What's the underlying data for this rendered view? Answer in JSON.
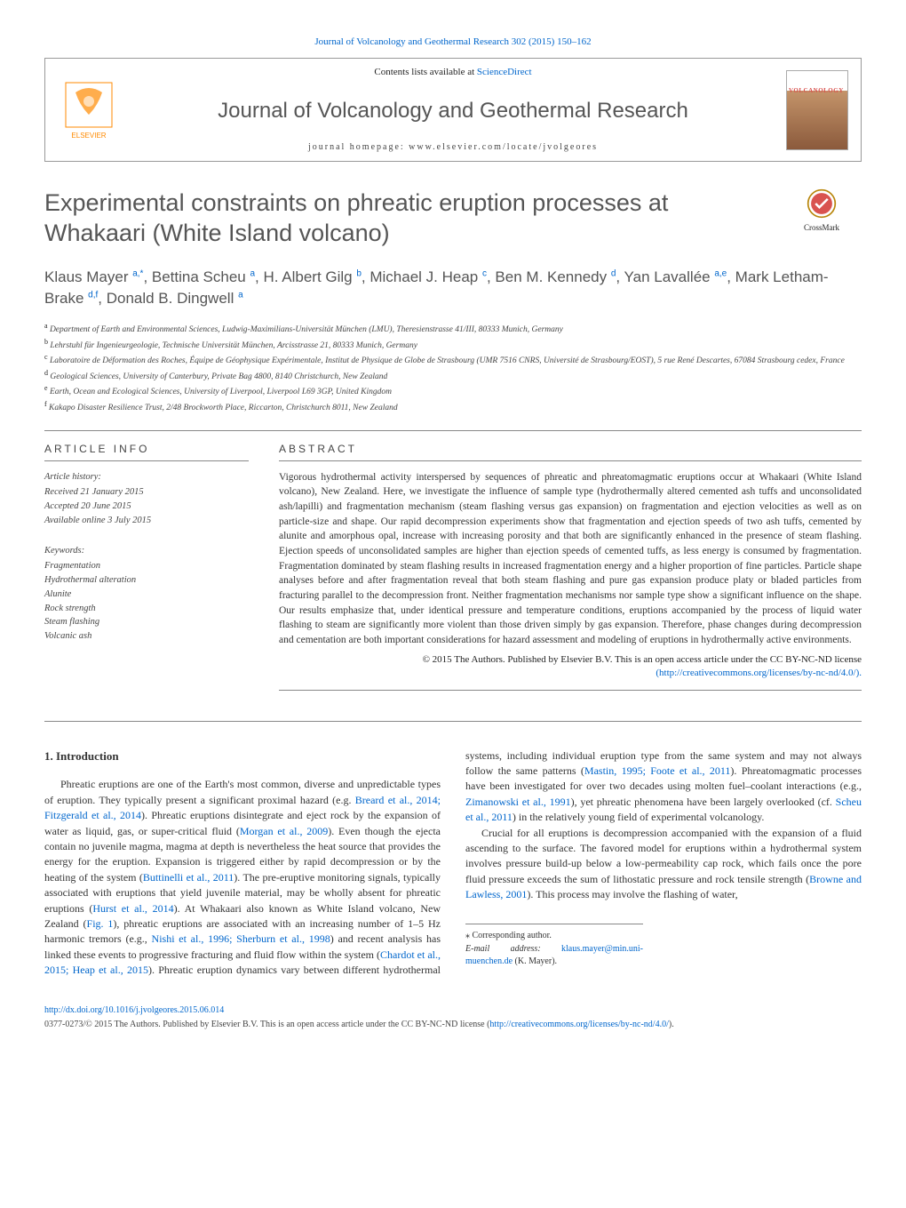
{
  "header": {
    "top_link": "Journal of Volcanology and Geothermal Research 302 (2015) 150–162",
    "contents_prefix": "Contents lists available at ",
    "contents_link": "ScienceDirect",
    "journal_title": "Journal of Volcanology and Geothermal Research",
    "homepage": "journal homepage: www.elsevier.com/locate/jvolgeores",
    "cover_text": "VOLCANOLOGY",
    "elsevier_label": "ELSEVIER"
  },
  "crossmark": {
    "label": "CrossMark"
  },
  "paper": {
    "title": "Experimental constraints on phreatic eruption processes at Whakaari (White Island volcano)",
    "authors_html": "Klaus Mayer <sup>a,*</sup>, Bettina Scheu <sup>a</sup>, H. Albert Gilg <sup>b</sup>, Michael J. Heap <sup>c</sup>, Ben M. Kennedy <sup>d</sup>, Yan Lavallée <sup>a,e</sup>, Mark Letham-Brake <sup>d,f</sup>, Donald B. Dingwell <sup>a</sup>"
  },
  "affiliations": {
    "a": "Department of Earth and Environmental Sciences, Ludwig-Maximilians-Universität München (LMU), Theresienstrasse 41/III, 80333 Munich, Germany",
    "b": "Lehrstuhl für Ingenieurgeologie, Technische Universität München, Arcisstrasse 21, 80333 Munich, Germany",
    "c": "Laboratoire de Déformation des Roches, Équipe de Géophysique Expérimentale, Institut de Physique de Globe de Strasbourg (UMR 7516 CNRS, Université de Strasbourg/EOST), 5 rue René Descartes, 67084 Strasbourg cedex, France",
    "d": "Geological Sciences, University of Canterbury, Private Bag 4800, 8140 Christchurch, New Zealand",
    "e": "Earth, Ocean and Ecological Sciences, University of Liverpool, Liverpool L69 3GP, United Kingdom",
    "f": "Kakapo Disaster Resilience Trust, 2/48 Brockworth Place, Riccarton, Christchurch 8011, New Zealand"
  },
  "article_info": {
    "heading": "ARTICLE INFO",
    "history_label": "Article history:",
    "received": "Received 21 January 2015",
    "accepted": "Accepted 20 June 2015",
    "online": "Available online 3 July 2015",
    "keywords_label": "Keywords:",
    "keywords": [
      "Fragmentation",
      "Hydrothermal alteration",
      "Alunite",
      "Rock strength",
      "Steam flashing",
      "Volcanic ash"
    ]
  },
  "abstract": {
    "heading": "ABSTRACT",
    "text": "Vigorous hydrothermal activity interspersed by sequences of phreatic and phreatomagmatic eruptions occur at Whakaari (White Island volcano), New Zealand. Here, we investigate the influence of sample type (hydrothermally altered cemented ash tuffs and unconsolidated ash/lapilli) and fragmentation mechanism (steam flashing versus gas expansion) on fragmentation and ejection velocities as well as on particle-size and shape. Our rapid decompression experiments show that fragmentation and ejection speeds of two ash tuffs, cemented by alunite and amorphous opal, increase with increasing porosity and that both are significantly enhanced in the presence of steam flashing. Ejection speeds of unconsolidated samples are higher than ejection speeds of cemented tuffs, as less energy is consumed by fragmentation. Fragmentation dominated by steam flashing results in increased fragmentation energy and a higher proportion of fine particles. Particle shape analyses before and after fragmentation reveal that both steam flashing and pure gas expansion produce platy or bladed particles from fracturing parallel to the decompression front. Neither fragmentation mechanisms nor sample type show a significant influence on the shape. Our results emphasize that, under identical pressure and temperature conditions, eruptions accompanied by the process of liquid water flashing to steam are significantly more violent than those driven simply by gas expansion. Therefore, phase changes during decompression and cementation are both important considerations for hazard assessment and modeling of eruptions in hydrothermally active environments.",
    "license_prefix": "© 2015 The Authors. Published by Elsevier B.V. This is an open access article under the CC BY-NC-ND license",
    "license_link": "(http://creativecommons.org/licenses/by-nc-nd/4.0/)."
  },
  "introduction": {
    "heading": "1. Introduction",
    "para1_pre": "Phreatic eruptions are one of the Earth's most common, diverse and unpredictable types of eruption. They typically present a significant proximal hazard (e.g. ",
    "para1_ref1": "Breard et al., 2014; Fitzgerald et al., 2014",
    "para1_mid1": "). Phreatic eruptions disintegrate and eject rock by the expansion of water as liquid, gas, or super-critical fluid (",
    "para1_ref2": "Morgan et al., 2009",
    "para1_mid2": "). Even though the ejecta contain no juvenile magma, magma at depth is nevertheless the heat source that provides the energy for the eruption. Expansion is triggered either by rapid decompression or by the heating of the system (",
    "para1_ref3": "Buttinelli et al., 2011",
    "para1_mid3": "). The pre-eruptive monitoring signals, typically associated with eruptions that yield juvenile material, may be wholly absent for phreatic eruptions (",
    "para1_ref4": "Hurst et al., 2014",
    "para1_mid4": "). At Whakaari also known as White Island volcano, New Zealand (",
    "para1_ref5": "Fig. 1",
    "para1_mid5": "), phreatic eruptions are associated with an increasing number of 1–5 Hz harmonic tremors (e.g., ",
    "para1_ref6": "Nishi et al., 1996; Sherburn et al., 1998",
    "para1_mid6": ") and recent analysis has linked these events to progressive fracturing and fluid flow within the system (",
    "para1_ref7": "Chardot et al., 2015; Heap et al., 2015",
    "para1_mid7": "). Phreatic eruption dynamics vary between different hydrothermal systems, including individual eruption type from the same system and may not always follow the same patterns (",
    "para1_ref8": "Mastin, 1995; Foote et al., 2011",
    "para1_mid8": "). Phreatomagmatic processes have been investigated for over two decades using molten fuel–coolant interactions (e.g., ",
    "para1_ref9": "Zimanowski et al., 1991",
    "para1_mid9": "), yet phreatic phenomena have been largely overlooked (cf. ",
    "para1_ref10": "Scheu et al., 2011",
    "para1_end": ") in the relatively young field of experimental volcanology.",
    "para2_pre": "Crucial for all eruptions is decompression accompanied with the expansion of a fluid ascending to the surface. The favored model for eruptions within a hydrothermal system involves pressure build-up below a low-permeability cap rock, which fails once the pore fluid pressure exceeds the sum of lithostatic pressure and rock tensile strength (",
    "para2_ref1": "Browne and Lawless, 2001",
    "para2_end": "). This process may involve the flashing of water,"
  },
  "corresponding": {
    "label": "⁎ Corresponding author.",
    "email_label": "E-mail address: ",
    "email": "klaus.mayer@min.uni-muenchen.de",
    "email_suffix": " (K. Mayer)."
  },
  "footer": {
    "doi": "http://dx.doi.org/10.1016/j.jvolgeores.2015.06.014",
    "copyright": "0377-0273/© 2015 The Authors. Published by Elsevier B.V. This is an open access article under the CC BY-NC-ND license (",
    "copyright_link": "http://creativecommons.org/licenses/by-nc-nd/4.0/",
    "copyright_suffix": ")."
  },
  "colors": {
    "link": "#0066cc",
    "heading_gray": "#555555",
    "elsevier_orange": "#ff8a00"
  }
}
